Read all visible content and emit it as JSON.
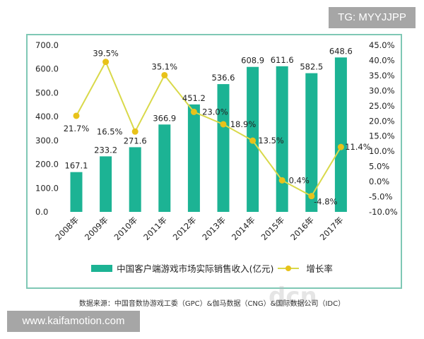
{
  "chart_data": {
    "type": "bar+line",
    "categories": [
      "2008年",
      "2009年",
      "2010年",
      "2011年",
      "2012年",
      "2013年",
      "2014年",
      "2015年",
      "2016年",
      "2017年"
    ],
    "series": [
      {
        "name": "中国客户端游戏市场实际销售收入(亿元)",
        "type": "bar",
        "axis": "left",
        "color": "#1cb394",
        "values": [
          167.1,
          233.2,
          271.6,
          366.9,
          451.2,
          536.6,
          608.9,
          611.6,
          582.5,
          648.6
        ],
        "labels": [
          "167.1",
          "233.2",
          "271.6",
          "366.9",
          "451.2",
          "536.6",
          "608.9",
          "611.6",
          "582.5",
          "648.6"
        ]
      },
      {
        "name": "增长率",
        "type": "line",
        "axis": "right",
        "color": "#e8c21a",
        "values": [
          21.7,
          39.5,
          16.5,
          35.1,
          23.0,
          18.9,
          13.5,
          0.4,
          -4.8,
          11.4
        ],
        "labels": [
          "21.7%",
          "39.5%",
          "16.5%",
          "35.1%",
          "23.0%",
          "18.9%",
          "13.5%",
          "0.4%",
          "-4.8%",
          "11.4%"
        ]
      }
    ],
    "y_left": {
      "range": [
        0,
        700
      ],
      "ticks": [
        "0.0",
        "100.0",
        "200.0",
        "300.0",
        "400.0",
        "500.0",
        "600.0",
        "700.0"
      ]
    },
    "y_right": {
      "range": [
        -10,
        45
      ],
      "ticks": [
        "-10.0%",
        "-5.0%",
        "0.0%",
        "5.0%",
        "10.0%",
        "15.0%",
        "20.0%",
        "25.0%",
        "30.0%",
        "35.0%",
        "40.0%",
        "45.0%"
      ]
    },
    "grid": false,
    "legend": "bottom"
  },
  "source": "数据来源：中国音数协游戏工委（GPC）&伽马数据（CNG）&国际数据公司（IDC）",
  "watermark_tg": "TG: MYYJJPP",
  "watermark_site": "www.kaifamotion.com",
  "watermark_logo": "dcn当乐网"
}
